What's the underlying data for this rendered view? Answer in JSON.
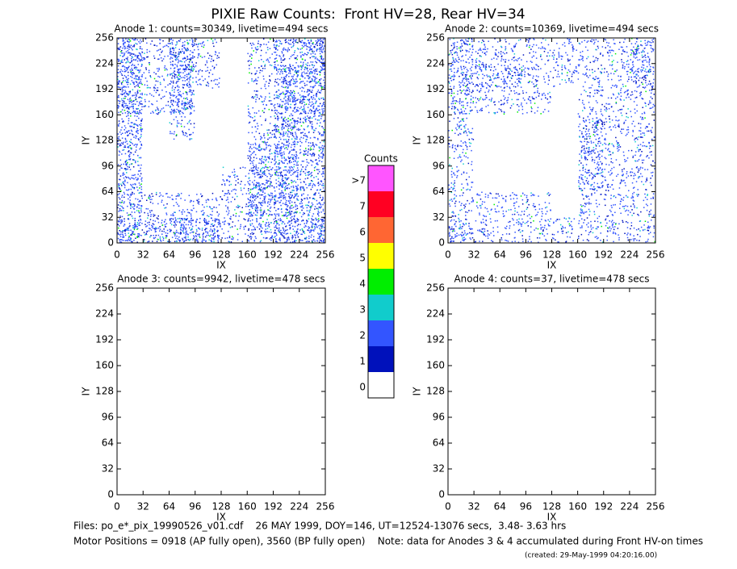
{
  "title": "PIXIE Raw Counts:  Front HV=28, Rear HV=34",
  "chart_data": [
    {
      "type": "heatmap",
      "title": "Anode 1: counts=30349, livetime=494 secs",
      "xlabel": "IX",
      "ylabel": "IY",
      "xlim": [
        0,
        256
      ],
      "ylim": [
        0,
        256
      ],
      "xticks": [
        0,
        32,
        64,
        96,
        128,
        160,
        192,
        224,
        256
      ],
      "yticks": [
        0,
        32,
        64,
        96,
        128,
        160,
        192,
        224,
        256
      ],
      "cells": [
        [
          3,
          2,
          3,
          3,
          1,
          2,
          3,
          3
        ],
        [
          2,
          1,
          1,
          1,
          1,
          3,
          3,
          2
        ],
        [
          2,
          0,
          0,
          0,
          1,
          3,
          3,
          2
        ],
        [
          2,
          0,
          0,
          0,
          0,
          2,
          3,
          2
        ],
        [
          2,
          0,
          1,
          0,
          0,
          1,
          3,
          2
        ],
        [
          3,
          1,
          3,
          0,
          0,
          1,
          3,
          3
        ],
        [
          3,
          1,
          3,
          1,
          0,
          1,
          3,
          3
        ],
        [
          3,
          1,
          3,
          1,
          0,
          1,
          2,
          3
        ]
      ]
    },
    {
      "type": "heatmap",
      "title": "Anode 2: counts=10369, livetime=494 secs",
      "xlabel": "IX",
      "ylabel": "IY",
      "xlim": [
        0,
        256
      ],
      "ylim": [
        0,
        256
      ],
      "xticks": [
        0,
        32,
        64,
        96,
        128,
        160,
        192,
        224,
        256
      ],
      "yticks": [
        0,
        32,
        64,
        96,
        128,
        160,
        192,
        224,
        256
      ],
      "cells": [
        [
          2,
          1,
          1,
          1,
          1,
          1,
          1,
          1
        ],
        [
          1,
          1,
          1,
          1,
          0,
          1,
          1,
          1
        ],
        [
          1,
          0,
          0,
          0,
          0,
          2,
          1,
          1
        ],
        [
          1,
          0,
          0,
          0,
          0,
          2,
          1,
          1
        ],
        [
          1,
          0,
          0,
          0,
          0,
          2,
          1,
          1
        ],
        [
          2,
          1,
          1,
          1,
          0,
          1,
          1,
          1
        ],
        [
          2,
          2,
          2,
          1,
          1,
          1,
          1,
          2
        ],
        [
          2,
          1,
          1,
          1,
          1,
          1,
          1,
          2
        ]
      ]
    },
    {
      "type": "heatmap",
      "title": "Anode 3: counts=9942, livetime=478 secs",
      "xlabel": "IX",
      "ylabel": "IY",
      "xlim": [
        0,
        256
      ],
      "ylim": [
        0,
        256
      ],
      "xticks": [
        0,
        32,
        64,
        96,
        128,
        160,
        192,
        224,
        256
      ],
      "yticks": [
        0,
        32,
        64,
        96,
        128,
        160,
        192,
        224,
        256
      ],
      "cells": [
        [
          0,
          0,
          0,
          0,
          0,
          0,
          0,
          0
        ],
        [
          0,
          0,
          0,
          0,
          0,
          0,
          0,
          0
        ],
        [
          0,
          0,
          0,
          0,
          0,
          0,
          0,
          0
        ],
        [
          0,
          0,
          0,
          0,
          0,
          0,
          0,
          0
        ],
        [
          0,
          0,
          0,
          0,
          0,
          0,
          0,
          0
        ],
        [
          0,
          0,
          0,
          0,
          0,
          0,
          0,
          0
        ],
        [
          0,
          0,
          0,
          0,
          0,
          0,
          0,
          0
        ],
        [
          0,
          0,
          0,
          0,
          0,
          0,
          0,
          0
        ]
      ]
    },
    {
      "type": "heatmap",
      "title": "Anode 4: counts=37, livetime=478 secs",
      "xlabel": "IX",
      "ylabel": "IY",
      "xlim": [
        0,
        256
      ],
      "ylim": [
        0,
        256
      ],
      "xticks": [
        0,
        32,
        64,
        96,
        128,
        160,
        192,
        224,
        256
      ],
      "yticks": [
        0,
        32,
        64,
        96,
        128,
        160,
        192,
        224,
        256
      ],
      "cells": [
        [
          0,
          0,
          0,
          0,
          0,
          0,
          0,
          0
        ],
        [
          0,
          0,
          0,
          0,
          0,
          0,
          0,
          0
        ],
        [
          0,
          0,
          0,
          0,
          0,
          0,
          0,
          0
        ],
        [
          0,
          0,
          0,
          0,
          0,
          0,
          0,
          0
        ],
        [
          0,
          0,
          0,
          0,
          0,
          0,
          0,
          0
        ],
        [
          0,
          0,
          0,
          0,
          0,
          0,
          0,
          0
        ],
        [
          0,
          0,
          0,
          0,
          0,
          0,
          0,
          0
        ],
        [
          0,
          0,
          0,
          0,
          0,
          0,
          0,
          0
        ]
      ]
    }
  ],
  "colorbar": {
    "title": "Counts",
    "labels": [
      ">7",
      "7",
      "6",
      "5",
      "4",
      "3",
      "2",
      "1",
      "0"
    ],
    "colors": [
      "#ff55ff",
      "#ff0022",
      "#ff6633",
      "#ffff00",
      "#00ee00",
      "#11cccc",
      "#3355ff",
      "#0011bb",
      "#ffffff"
    ]
  },
  "footer": [
    "Files: po_e*_pix_19990526_v01.cdf    26 MAY 1999, DOY=146, UT=12524-13076 secs,  3.48- 3.63 hrs",
    "Motor Positions = 0918 (AP fully open), 3560 (BP fully open)    Note: data for Anodes 3 & 4 accumulated during Front HV-on times",
    "(created: 29-May-1999 04:20:16.00)"
  ]
}
